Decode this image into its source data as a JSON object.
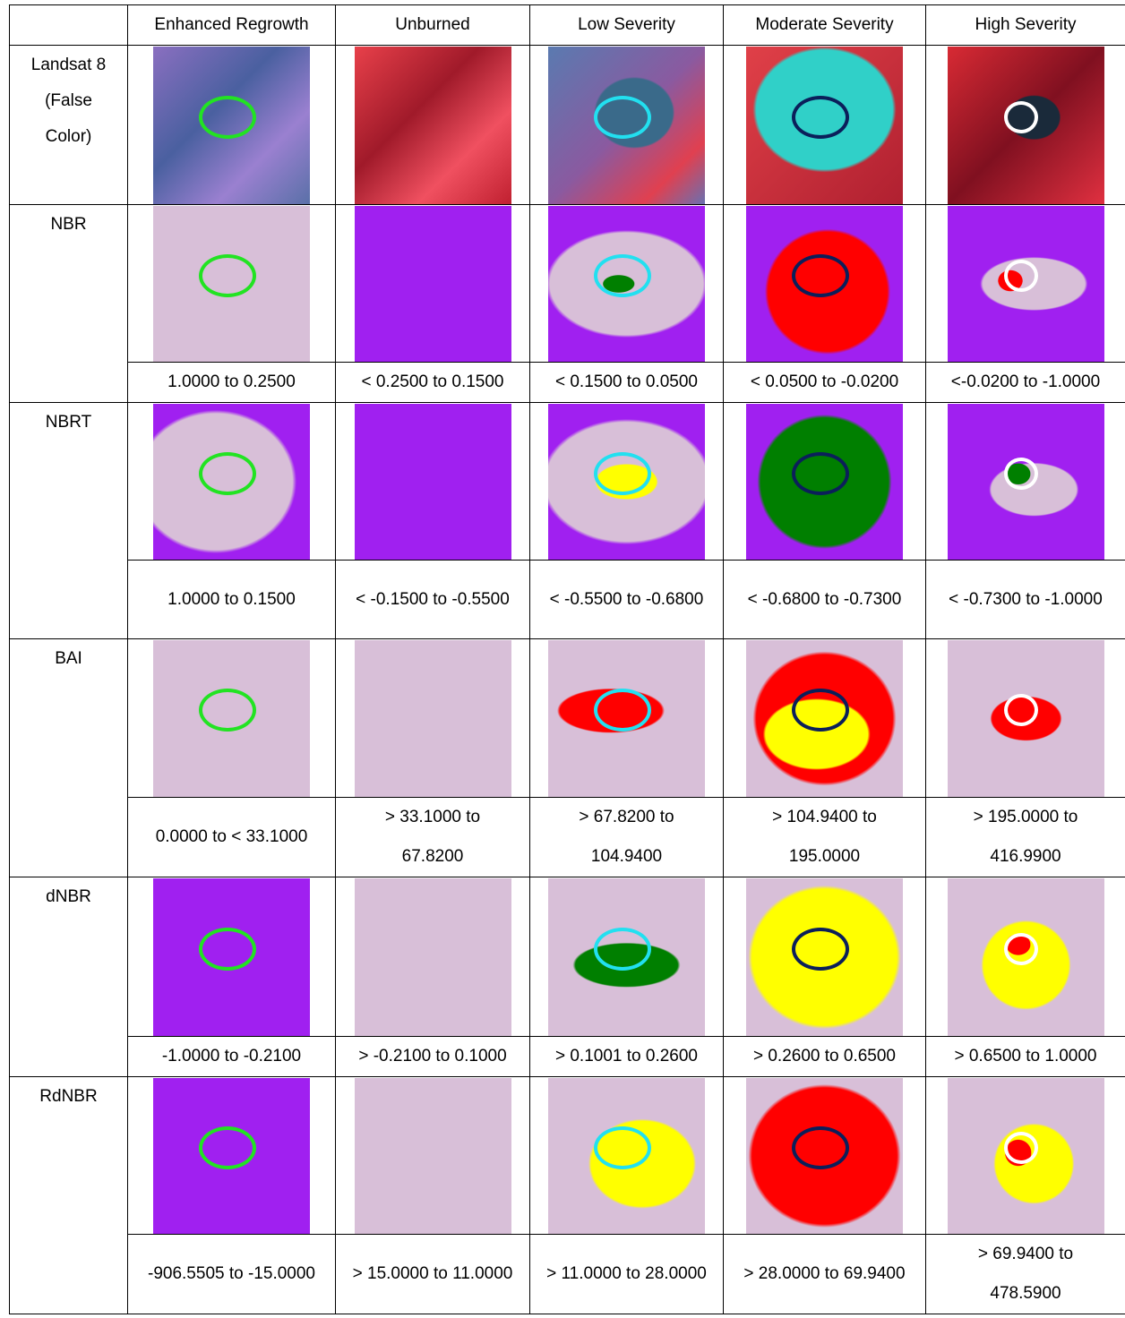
{
  "header": {
    "columns": [
      "Enhanced Regrowth",
      "Unburned",
      "Low Severity",
      "Moderate Severity",
      "High Severity"
    ]
  },
  "rows": [
    {
      "label": "Landsat 8 (False Color)"
    },
    {
      "label": "NBR",
      "ranges": [
        "1.0000 to 0.2500",
        "< 0.2500 to 0.1500",
        "< 0.1500 to 0.0500",
        "< 0.0500 to -0.0200",
        "<-0.0200 to -1.0000"
      ]
    },
    {
      "label": "NBRT",
      "ranges": [
        "1.0000 to 0.1500",
        "< -0.1500 to -0.5500",
        "< -0.5500 to -0.6800",
        "< -0.6800 to -0.7300",
        "< -0.7300 to -1.0000"
      ]
    },
    {
      "label": "BAI",
      "ranges": [
        "0.0000 to < 33.1000",
        "> 33.1000 to 67.8200",
        "> 67.8200 to 104.9400",
        "> 104.9400 to 195.0000",
        "> 195.0000 to 416.9900"
      ]
    },
    {
      "label": "dNBR",
      "ranges": [
        "-1.0000 to -0.2100",
        "> -0.2100 to 0.1000",
        "> 0.1001 to 0.2600",
        "> 0.2600 to 0.6500",
        "> 0.6500 to 1.0000"
      ]
    },
    {
      "label": "RdNBR",
      "ranges": [
        "-906.5505 to -15.0000",
        "> 15.0000 to 11.0000",
        "> 11.0000 to 28.0000",
        "> 28.0000 to 69.9400",
        "> 69.9400 to 478.5900"
      ]
    }
  ]
}
